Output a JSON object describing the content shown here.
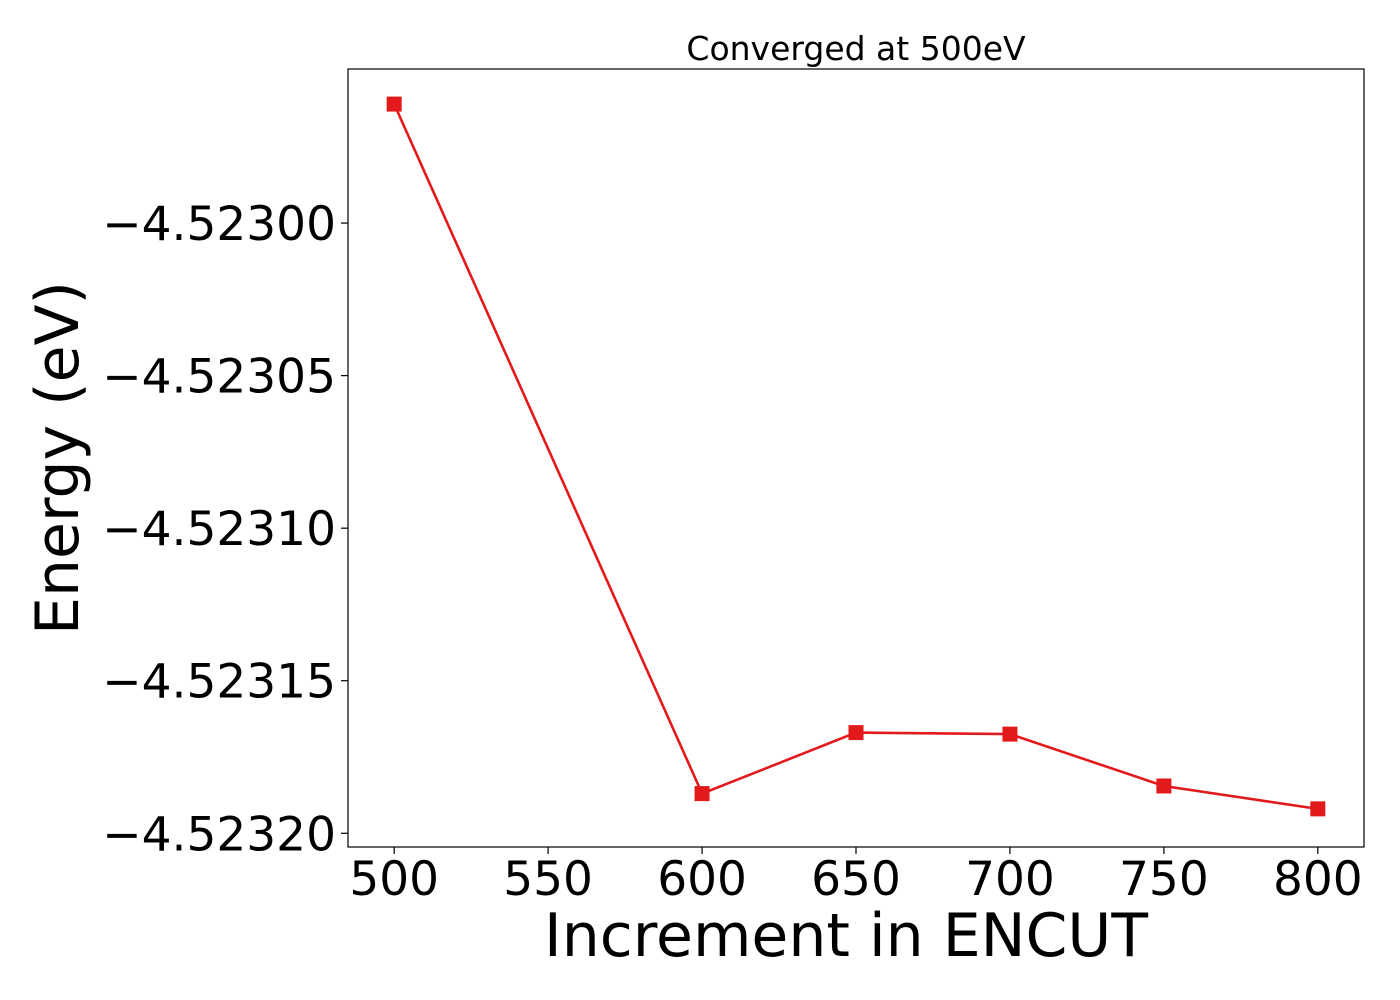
{
  "chart_data": {
    "type": "line",
    "title": "Converged at 500eV",
    "xlabel": "Increment in ENCUT",
    "ylabel": "Energy (eV)",
    "x": [
      500,
      600,
      650,
      700,
      750,
      800
    ],
    "series": [
      {
        "values": [
          -4.522961,
          -4.523187,
          -4.523167,
          -4.5231675,
          -4.5231845,
          -4.523192
        ],
        "color": "#e31a1c",
        "marker": "square"
      }
    ],
    "xticks": [
      500,
      550,
      600,
      650,
      700,
      750,
      800
    ],
    "xtick_labels": [
      "500",
      "550",
      "600",
      "650",
      "700",
      "750",
      "800"
    ],
    "yticks": [
      -4.523,
      -4.52305,
      -4.5231,
      -4.52315,
      -4.5232
    ],
    "ytick_labels": [
      "−4.52300",
      "−4.52305",
      "−4.52310",
      "−4.52315",
      "−4.52320"
    ],
    "xlim": [
      485,
      815
    ],
    "ylim": [
      -4.5232045,
      -4.5229495
    ],
    "grid": false,
    "legend": "none"
  }
}
